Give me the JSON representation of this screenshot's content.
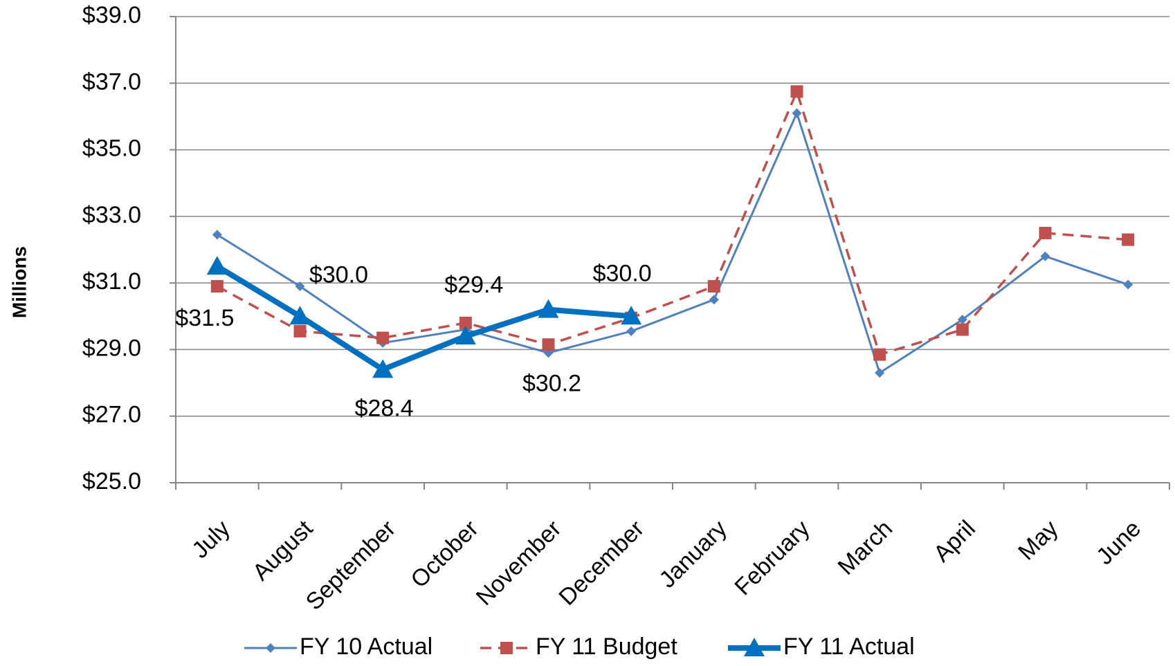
{
  "chart_data": {
    "type": "line",
    "ylabel": "Millions",
    "categories": [
      "July",
      "August",
      "September",
      "October",
      "November",
      "December",
      "January",
      "February",
      "March",
      "April",
      "May",
      "June"
    ],
    "series": [
      {
        "name": "FY 10 Actual",
        "color": "#4f81bd",
        "marker": "diamond",
        "dashed": false,
        "width": 3,
        "values": [
          32.45,
          30.9,
          29.2,
          29.6,
          28.9,
          29.55,
          30.5,
          36.1,
          28.3,
          29.9,
          31.8,
          30.95
        ]
      },
      {
        "name": "FY 11 Budget",
        "color": "#c0504d",
        "marker": "square",
        "dashed": true,
        "width": 3.5,
        "values": [
          30.9,
          29.55,
          29.35,
          29.8,
          29.15,
          29.95,
          30.9,
          36.75,
          28.85,
          29.6,
          32.5,
          32.3
        ]
      },
      {
        "name": "FY 11 Actual",
        "color": "#0070c0",
        "marker": "triangle",
        "dashed": false,
        "width": 8,
        "values": [
          31.5,
          30.0,
          28.4,
          29.4,
          30.2,
          30.0,
          null,
          null,
          null,
          null,
          null,
          null
        ],
        "value_labels": [
          "$31.5",
          "$30.0",
          "$28.4",
          "$29.4",
          "$30.2",
          "$30.0",
          null,
          null,
          null,
          null,
          null,
          null
        ]
      }
    ],
    "ylim": [
      25,
      39
    ],
    "yticks": [
      {
        "value": 25,
        "label": "$25.0"
      },
      {
        "value": 27,
        "label": "$27.0"
      },
      {
        "value": 29,
        "label": "$29.0"
      },
      {
        "value": 31,
        "label": "$31.0"
      },
      {
        "value": 33,
        "label": "$33.0"
      },
      {
        "value": 35,
        "label": "$35.0"
      },
      {
        "value": 37,
        "label": "$37.0"
      },
      {
        "value": 39,
        "label": "$39.0"
      }
    ],
    "grid": true,
    "legend": "bottom"
  }
}
